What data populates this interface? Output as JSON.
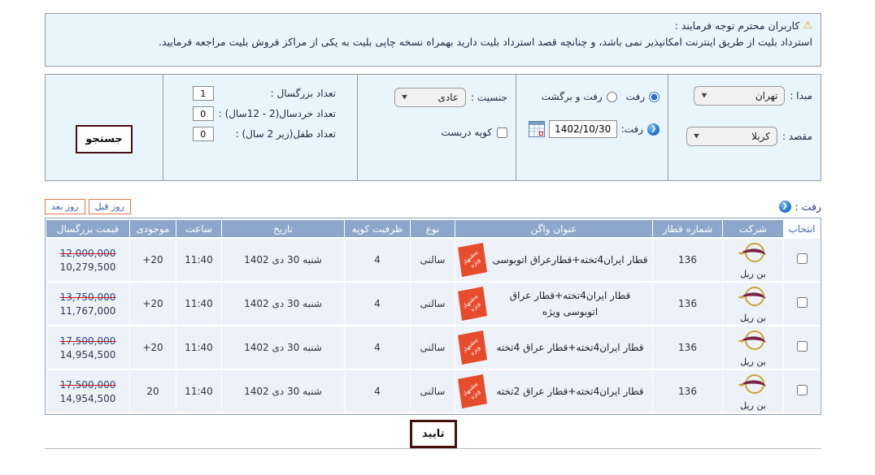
{
  "notice": {
    "title": "کاربران محترم توجه فرمایند :",
    "body": "استرداد بلیت از طریق اینترنت امکانپذیر نمی باشد، و چنانچه قصد استرداد بلیت دارید بهمراه نسخه چاپی بلیت به یکی از مراکز فروش بلیت مراجعه فرمایید."
  },
  "search_form": {
    "origin_label": "مبدا :",
    "origin_value": "تهران",
    "destination_label": "مقصد :",
    "destination_value": "کربلا",
    "trip_type": {
      "oneway_label": "رفت",
      "roundtrip_label": "رفت و برگشت",
      "selected": "رفت"
    },
    "depart_label": "رفت:",
    "depart_date": "1402/10/30",
    "gender_label": "جنسیت :",
    "gender_value": "عادی",
    "private_coupe_label": "کوپه دربست",
    "private_coupe_checked": false,
    "adults_label": "تعداد بزرگسال :",
    "adults_value": "1",
    "children_label": "تعداد خردسال(2 - 12سال) :",
    "children_value": "0",
    "infants_label": "تعداد طفل(زیر 2 سال) :",
    "infants_value": "0",
    "search_button": "جستجو"
  },
  "results": {
    "section_label": "رفت :",
    "prev_day_button": "روز قبل",
    "next_day_button": "روز بعد",
    "confirm_button": "تایید",
    "badge": {
      "line1": "پیشنهاد",
      "line2": "ویژه"
    },
    "table": {
      "headers": [
        "انتخاب",
        "شرکت",
        "شماره قطار",
        "عنوان واگن",
        "نوع",
        "ظرفیت کوپه",
        "تاریخ",
        "ساعت",
        "موجودی",
        "قیمت بزرگسال"
      ],
      "rows": [
        {
          "company": "بن ریل",
          "train_number": "136",
          "wagon_title": "قطار ایران4تخته+قطارعراق اتوبوسی",
          "type": "سالنی",
          "coupe_capacity": "4",
          "date": "شنبه 30 دی 1402",
          "time": "11:40",
          "availability": "+20",
          "old_price": "12,000,000",
          "price": "10,279,500"
        },
        {
          "company": "بن ریل",
          "train_number": "136",
          "wagon_title": "قطار ایران4تخته+قطار عراق اتوبوسی ویژه",
          "type": "سالنی",
          "coupe_capacity": "4",
          "date": "شنبه 30 دی 1402",
          "time": "11:40",
          "availability": "+20",
          "old_price": "13,750,000",
          "price": "11,767,000"
        },
        {
          "company": "بن ریل",
          "train_number": "136",
          "wagon_title": "قطار ایران4تخته+قطار عراق 4تخته",
          "type": "سالنی",
          "coupe_capacity": "4",
          "date": "شنبه 30 دی 1402",
          "time": "11:40",
          "availability": "+20",
          "old_price": "17,500,000",
          "price": "14,954,500"
        },
        {
          "company": "بن ریل",
          "train_number": "136",
          "wagon_title": "قطار ایران4تخته+قطار عراق 2تخته",
          "type": "سالنی",
          "coupe_capacity": "4",
          "date": "شنبه 30 دی 1402",
          "time": "11:40",
          "availability": "20",
          "old_price": "17,500,000",
          "price": "14,954,500"
        }
      ]
    }
  },
  "colors": {
    "panel_bg": "#e9f5fc",
    "table_header_bg": "#8da6cb",
    "row_bg": "#edf1f8",
    "badge_red": "#e64b2c",
    "button_border_maroon": "#46100e",
    "day_button_border": "#e0784a",
    "old_price_strike": "#cc1111",
    "logo_gold": "#c8a536",
    "logo_maroon": "#7b2346"
  }
}
